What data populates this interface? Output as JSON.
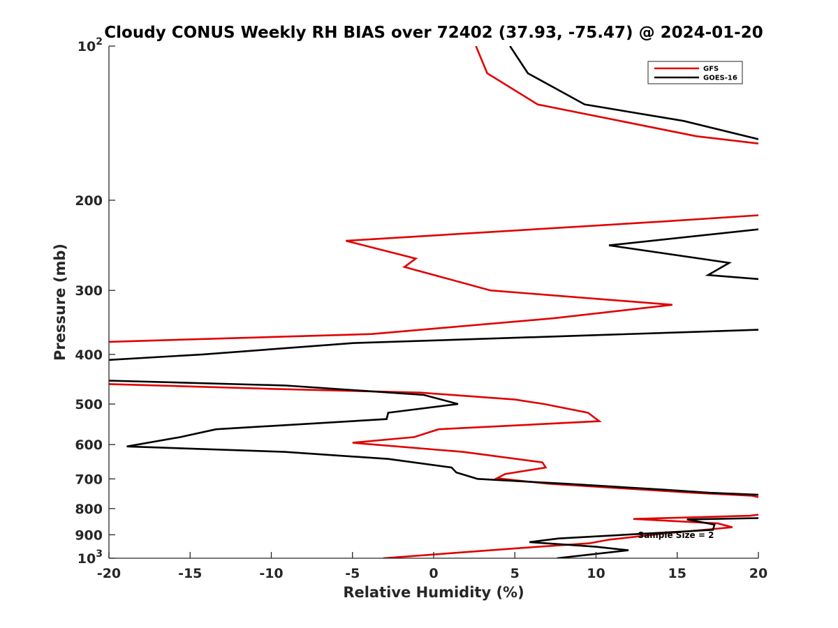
{
  "chart_data": {
    "type": "line",
    "title": "Cloudy CONUS Weekly RH BIAS over 72402 (37.93, -75.47) @ 2024-01-20",
    "xlabel": "Relative Humidity (%)",
    "ylabel": "Pressure (mb)",
    "xlim": [
      -20,
      20
    ],
    "ylim": [
      100,
      1000
    ],
    "y_scale": "log",
    "y_reversed": true,
    "grid": false,
    "legend_placement": "top-right",
    "x_ticks": [
      {
        "value": -20,
        "label": "-20"
      },
      {
        "value": -15,
        "label": "-15"
      },
      {
        "value": -10,
        "label": "-10"
      },
      {
        "value": -5,
        "label": "-5"
      },
      {
        "value": 0,
        "label": "0"
      },
      {
        "value": 5,
        "label": "5"
      },
      {
        "value": 10,
        "label": "10"
      },
      {
        "value": 15,
        "label": "15"
      },
      {
        "value": 20,
        "label": "20"
      }
    ],
    "y_ticks": [
      {
        "value": 100,
        "label": "10",
        "sup": "2"
      },
      {
        "value": 200,
        "label": "200"
      },
      {
        "value": 300,
        "label": "300"
      },
      {
        "value": 400,
        "label": "400"
      },
      {
        "value": 500,
        "label": "500"
      },
      {
        "value": 600,
        "label": "600"
      },
      {
        "value": 700,
        "label": "700"
      },
      {
        "value": 800,
        "label": "800"
      },
      {
        "value": 900,
        "label": "900"
      },
      {
        "value": 1000,
        "label": "10",
        "sup": "3"
      }
    ],
    "series": [
      {
        "name": "GFS",
        "color": "#e00000",
        "segments": [
          [
            [
              2.6,
              100
            ],
            [
              3.3,
              113
            ],
            [
              6.4,
              130
            ],
            [
              16.2,
              150
            ],
            [
              20,
              155
            ]
          ],
          [
            [
              20,
              214
            ],
            [
              14.2,
              220
            ],
            [
              -5.4,
              240
            ],
            [
              -1.1,
              260
            ],
            [
              -1.8,
              270
            ],
            [
              3.5,
              300
            ],
            [
              14.7,
              320
            ],
            [
              7.4,
              340
            ],
            [
              -3.8,
              365
            ],
            [
              -20,
              378
            ]
          ],
          [
            [
              -20,
              457
            ],
            [
              -10,
              467
            ],
            [
              -0.8,
              475
            ],
            [
              5.0,
              490
            ],
            [
              6.8,
              500
            ],
            [
              9.5,
              520
            ],
            [
              10.2,
              540
            ],
            [
              0.3,
              560
            ],
            [
              -1.2,
              580
            ],
            [
              -5.0,
              595
            ],
            [
              1.8,
              620
            ],
            [
              6.7,
              650
            ],
            [
              6.9,
              665
            ],
            [
              4.4,
              685
            ],
            [
              3.9,
              698
            ],
            [
              7.0,
              715
            ],
            [
              11.5,
              730
            ],
            [
              16,
              745
            ],
            [
              19.6,
              755
            ],
            [
              20,
              760
            ]
          ],
          [
            [
              20,
              822
            ],
            [
              19.5,
              826
            ],
            [
              12.3,
              838
            ],
            [
              17.5,
              855
            ],
            [
              18.4,
              870
            ],
            [
              14.2,
              895
            ],
            [
              10.8,
              920
            ],
            [
              9.6,
              935
            ],
            [
              5.4,
              955
            ],
            [
              -3.1,
              1000
            ]
          ]
        ]
      },
      {
        "name": "GOES-16",
        "color": "#000000",
        "segments": [
          [
            [
              4.7,
              100
            ],
            [
              5.8,
              113
            ],
            [
              9.3,
              130
            ],
            [
              15.4,
              140
            ],
            [
              20,
              152
            ]
          ],
          [
            [
              20,
              228
            ],
            [
              10.8,
              245
            ],
            [
              18.2,
              265
            ],
            [
              16.9,
              280
            ],
            [
              20,
              285
            ]
          ],
          [
            [
              20,
              358
            ],
            [
              15.5,
              362
            ],
            [
              -4.9,
              380
            ],
            [
              -14.2,
              400
            ],
            [
              -20,
              410
            ]
          ],
          [
            [
              -20,
              450
            ],
            [
              -9.1,
              460
            ],
            [
              -0.6,
              480
            ],
            [
              1.5,
              500
            ],
            [
              -2.8,
              520
            ],
            [
              -2.9,
              535
            ],
            [
              -13.4,
              560
            ],
            [
              -15.6,
              580
            ],
            [
              -18.9,
              605
            ],
            [
              -9.2,
              620
            ],
            [
              -2.8,
              640
            ],
            [
              1.1,
              665
            ],
            [
              1.4,
              680
            ],
            [
              2.7,
              700
            ],
            [
              8.0,
              715
            ],
            [
              14.3,
              735
            ],
            [
              17.0,
              745
            ],
            [
              20,
              752
            ]
          ],
          [
            [
              20,
              835
            ],
            [
              15.6,
              840
            ],
            [
              17.3,
              860
            ],
            [
              17.2,
              880
            ],
            [
              7.7,
              915
            ],
            [
              5.9,
              930
            ],
            [
              10.0,
              950
            ],
            [
              12.0,
              965
            ],
            [
              7.6,
              1000
            ]
          ]
        ]
      }
    ],
    "annotation": "Sample Size = 2"
  }
}
